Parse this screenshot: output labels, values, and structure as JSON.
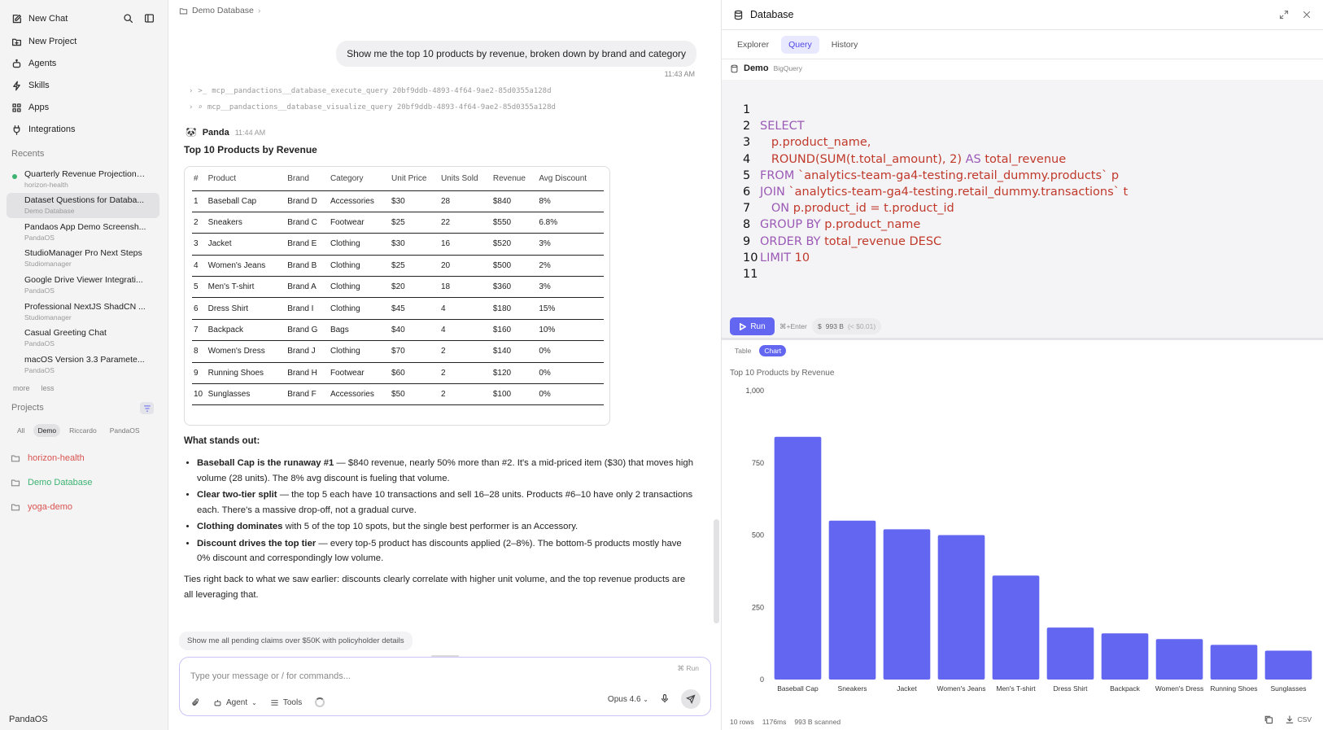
{
  "sidebar": {
    "new_chat": "New Chat",
    "nav": [
      {
        "label": "New Project",
        "icon": "folder-plus-icon"
      },
      {
        "label": "Agents",
        "icon": "bot-icon"
      },
      {
        "label": "Skills",
        "icon": "zap-icon"
      },
      {
        "label": "Apps",
        "icon": "grid-icon"
      },
      {
        "label": "Integrations",
        "icon": "plug-icon"
      }
    ],
    "recents_label": "Recents",
    "recents": [
      {
        "title": "Quarterly Revenue Projections ...",
        "sub": "horizon-health"
      },
      {
        "title": "Dataset Questions for Databa...",
        "sub": "Demo Database"
      },
      {
        "title": "Pandaos App Demo Screensh...",
        "sub": "PandaOS"
      },
      {
        "title": "StudioManager Pro Next Steps",
        "sub": "Studiomanager"
      },
      {
        "title": "Google Drive Viewer Integrati...",
        "sub": "PandaOS"
      },
      {
        "title": "Professional NextJS ShadCN ...",
        "sub": "Studiomanager"
      },
      {
        "title": "Casual Greeting Chat",
        "sub": "PandaOS"
      },
      {
        "title": "macOS Version 3.3 Paramete...",
        "sub": "PandaOS"
      }
    ],
    "more": "more",
    "less": "less",
    "projects_label": "Projects",
    "chips": [
      "All",
      "Demo",
      "Riccardo",
      "PandaOS"
    ],
    "projects": [
      {
        "name": "horizon-health",
        "color": "#d9534f"
      },
      {
        "name": "Demo Database",
        "color": "#3cb371"
      },
      {
        "name": "yoga-demo",
        "color": "#d9534f"
      }
    ],
    "footer": "PandaOS"
  },
  "chat": {
    "breadcrumb": "Demo Database",
    "user_message": "Show me the top 10 products by revenue, broken down by brand and category",
    "user_time": "11:43 AM",
    "tool_calls": [
      "mcp__pandactions__database_execute_query 20bf9ddb-4893-4f64-9ae2-85d0355a128d",
      "mcp__pandactions__database_visualize_query 20bf9ddb-4893-4f64-9ae2-85d0355a128d"
    ],
    "assistant_name": "Panda",
    "assistant_time": "11:44 AM",
    "answer_title": "Top 10 Products by Revenue",
    "table": {
      "headers": [
        "#",
        "Product",
        "Brand",
        "Category",
        "Unit Price",
        "Units Sold",
        "Revenue",
        "Avg Discount"
      ],
      "rows": [
        [
          "1",
          "Baseball Cap",
          "Brand D",
          "Accessories",
          "$30",
          "28",
          "$840",
          "8%"
        ],
        [
          "2",
          "Sneakers",
          "Brand C",
          "Footwear",
          "$25",
          "22",
          "$550",
          "6.8%"
        ],
        [
          "3",
          "Jacket",
          "Brand E",
          "Clothing",
          "$30",
          "16",
          "$520",
          "3%"
        ],
        [
          "4",
          "Women's Jeans",
          "Brand B",
          "Clothing",
          "$25",
          "20",
          "$500",
          "2%"
        ],
        [
          "5",
          "Men's T-shirt",
          "Brand A",
          "Clothing",
          "$20",
          "18",
          "$360",
          "3%"
        ],
        [
          "6",
          "Dress Shirt",
          "Brand I",
          "Clothing",
          "$45",
          "4",
          "$180",
          "15%"
        ],
        [
          "7",
          "Backpack",
          "Brand G",
          "Bags",
          "$40",
          "4",
          "$160",
          "10%"
        ],
        [
          "8",
          "Women's Dress",
          "Brand J",
          "Clothing",
          "$70",
          "2",
          "$140",
          "0%"
        ],
        [
          "9",
          "Running Shoes",
          "Brand H",
          "Footwear",
          "$60",
          "2",
          "$120",
          "0%"
        ],
        [
          "10",
          "Sunglasses",
          "Brand F",
          "Accessories",
          "$50",
          "2",
          "$100",
          "0%"
        ]
      ]
    },
    "stands_out_title": "What stands out:",
    "bullets": [
      {
        "bold": "Baseball Cap is the runaway #1",
        "text": " — $840 revenue, nearly 50% more than #2. It's a mid-priced item ($30) that moves high volume (28 units). The 8% avg discount is fueling that volume."
      },
      {
        "bold": "Clear two-tier split",
        "text": " — the top 5 each have 10 transactions and sell 16–28 units. Products #6–10 have only 2 transactions each. There's a massive drop-off, not a gradual curve."
      },
      {
        "bold": "Clothing dominates",
        "text": " with 5 of the top 10 spots, but the single best performer is an Accessory."
      },
      {
        "bold": "Discount drives the top tier",
        "text": " — every top-5 product has discounts applied (2–8%). The bottom-5 products mostly have 0% discount and correspondingly low volume."
      }
    ],
    "closing": "Ties right back to what we saw earlier: discounts clearly correlate with higher unit volume, and the top revenue products are all leveraging that.",
    "suggestion": "Show me all pending claims over $50K with policyholder details",
    "composer": {
      "placeholder": "Type your message or / for commands...",
      "run_hint": "Run",
      "agent": "Agent",
      "tools": "Tools",
      "model": "Opus 4.6"
    }
  },
  "panel": {
    "title": "Database",
    "tabs": [
      "Explorer",
      "Query",
      "History"
    ],
    "active_tab": "Query",
    "connection": "Demo",
    "connection_type": "BigQuery",
    "sql_lines": [
      {
        "n": "1",
        "parts": []
      },
      {
        "n": "2",
        "parts": [
          {
            "c": "kw",
            "t": "SELECT"
          }
        ]
      },
      {
        "n": "3",
        "parts": [
          {
            "c": "tx",
            "t": "   p.product_name,"
          }
        ]
      },
      {
        "n": "4",
        "parts": [
          {
            "c": "tx",
            "t": "   ROUND(SUM(t.total_amount), 2) "
          },
          {
            "c": "kw",
            "t": "AS"
          },
          {
            "c": "tx",
            "t": " total_revenue"
          }
        ]
      },
      {
        "n": "5",
        "parts": [
          {
            "c": "kw",
            "t": "FROM"
          },
          {
            "c": "tx",
            "t": " `analytics-team-ga4-testing.retail_dummy.products` p"
          }
        ]
      },
      {
        "n": "6",
        "parts": [
          {
            "c": "kw",
            "t": "JOIN"
          },
          {
            "c": "tx",
            "t": " `analytics-team-ga4-testing.retail_dummy.transactions` t"
          }
        ]
      },
      {
        "n": "7",
        "parts": [
          {
            "c": "kw",
            "t": "   ON"
          },
          {
            "c": "tx",
            "t": " p.product_id = t.product_id"
          }
        ]
      },
      {
        "n": "8",
        "parts": [
          {
            "c": "kw",
            "t": "GROUP BY"
          },
          {
            "c": "tx",
            "t": " p.product_name"
          }
        ]
      },
      {
        "n": "9",
        "parts": [
          {
            "c": "kw",
            "t": "ORDER BY"
          },
          {
            "c": "tx",
            "t": " total_revenue DESC"
          }
        ]
      },
      {
        "n": "10",
        "parts": [
          {
            "c": "kw",
            "t": "LIMIT"
          },
          {
            "c": "tx",
            "t": " 10"
          }
        ]
      },
      {
        "n": "11",
        "parts": []
      }
    ],
    "run_label": "Run",
    "shortcut": "⌘+Enter",
    "cost": "993 B",
    "cost_dim": "(< $0.01)",
    "view_tabs": [
      "Table",
      "Chart"
    ],
    "active_view": "Chart",
    "status": [
      "10 rows",
      "1176ms",
      "993 B scanned"
    ],
    "csv_label": "CSV",
    "accent": "#6366f1"
  },
  "chart_data": {
    "type": "bar",
    "title": "Top 10 Products by Revenue",
    "categories": [
      "Baseball Cap",
      "Sneakers",
      "Jacket",
      "Women's Jeans",
      "Men's T-shirt",
      "Dress Shirt",
      "Backpack",
      "Women's Dress",
      "Running Shoes",
      "Sunglasses"
    ],
    "values": [
      840,
      550,
      520,
      500,
      360,
      180,
      160,
      140,
      120,
      100
    ],
    "ylim": [
      0,
      1000
    ],
    "yticks": [
      0,
      250,
      500,
      750,
      1000
    ],
    "ytick_labels": [
      "0",
      "250",
      "500",
      "750",
      "1,000"
    ],
    "color": "#6366f1",
    "xlabel": "",
    "ylabel": ""
  }
}
